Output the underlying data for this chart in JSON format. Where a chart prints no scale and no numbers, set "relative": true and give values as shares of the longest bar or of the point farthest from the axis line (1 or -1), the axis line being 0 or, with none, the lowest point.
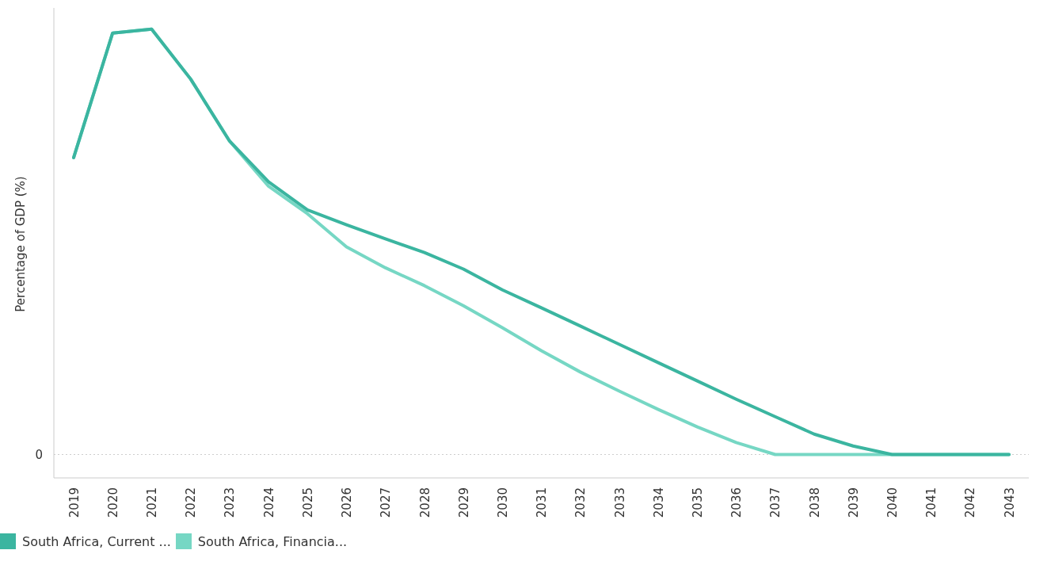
{
  "chart_data": {
    "type": "line",
    "relative": true,
    "ylabel": "Percentage of GDP (%)",
    "categories": [
      "2019",
      "2020",
      "2021",
      "2022",
      "2023",
      "2024",
      "2025",
      "2026",
      "2027",
      "2028",
      "2029",
      "2030",
      "2031",
      "2032",
      "2033",
      "2034",
      "2035",
      "2036",
      "2037",
      "2038",
      "2039",
      "2040",
      "2041",
      "2042",
      "2043"
    ],
    "series": [
      {
        "name": "South Africa, Current ...",
        "color": "#3bb5a0",
        "values": [
          0.698,
          0.991,
          1,
          0.883,
          0.737,
          0.641,
          0.575,
          0.54,
          0.507,
          0.475,
          0.436,
          0.387,
          0.345,
          0.302,
          0.259,
          0.216,
          0.173,
          0.13,
          0.089,
          0.048,
          0.02,
          0,
          0,
          0,
          0
        ]
      },
      {
        "name": "South Africa, Financia...",
        "color": "#76d7c4",
        "values": [
          0.698,
          0.991,
          1,
          0.883,
          0.737,
          0.631,
          0.566,
          0.488,
          0.439,
          0.397,
          0.35,
          0.298,
          0.244,
          0.194,
          0.149,
          0.106,
          0.065,
          0.028,
          0,
          0,
          0,
          0,
          0,
          0,
          0
        ]
      }
    ],
    "legend": "bottom left",
    "grid": false,
    "marker": "none",
    "line_style": "solid",
    "ref_lines": [
      {
        "axis": "y",
        "value": 0,
        "label": "0",
        "line_style": "dotted",
        "color": "#cccccc"
      }
    ]
  }
}
